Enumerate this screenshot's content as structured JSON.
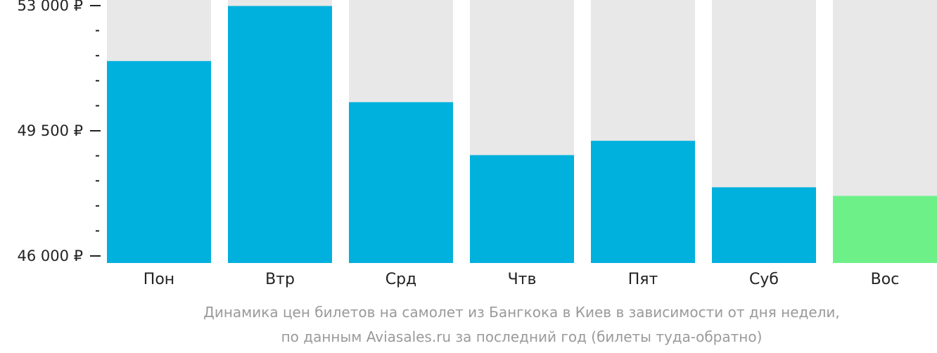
{
  "chart_data": {
    "type": "bar",
    "categories": [
      "Пон",
      "Втр",
      "Срд",
      "Чтв",
      "Пят",
      "Суб",
      "Вос"
    ],
    "values": [
      51450,
      52990,
      50300,
      48820,
      49220,
      47920,
      47680
    ],
    "ylim": [
      46000,
      53000
    ],
    "y_ticks": [
      {
        "value": 53000,
        "label": "53 000 ₽"
      },
      {
        "value": 49500,
        "label": "49 500 ₽"
      },
      {
        "value": 46000,
        "label": "46 000 ₽"
      }
    ],
    "y_minor_step": 700,
    "highlight_index": 6,
    "colors": {
      "bar": "#00b0dd",
      "highlight": "#6ef088",
      "track": "#e8e8e8",
      "axis": "#222222"
    },
    "caption": [
      "Динамика цен билетов на самолет из Бангкока в Киев в зависимости от дня недели,",
      "по данным Aviasales.ru за последний год (билеты туда-обратно)"
    ],
    "grid": false,
    "legend": "none"
  }
}
